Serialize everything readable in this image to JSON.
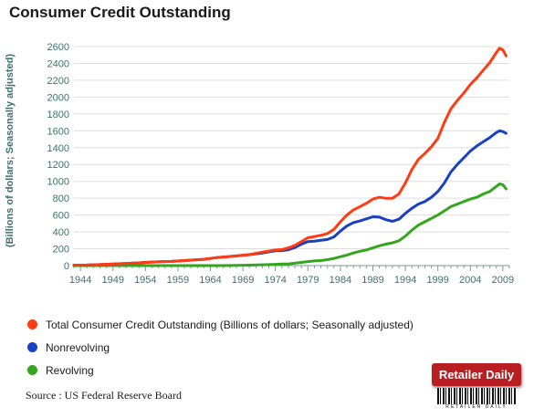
{
  "title": "Consumer Credit Outstanding",
  "source": "Source : US Federal Reserve Board",
  "logo": {
    "text": "Retailer Daily",
    "subtext": "RETAILER DAILY"
  },
  "colors": {
    "total": "#ff3b12",
    "nonrevolving": "#1a3fc4",
    "revolving": "#33a61c",
    "axis_text": "#3f6f6f"
  },
  "chart_data": {
    "type": "line",
    "ylabel": "(Billions of dollars; Seasonally adjusted)",
    "ylim": [
      0,
      2600
    ],
    "yticks": [
      0,
      200,
      400,
      600,
      800,
      1000,
      1200,
      1400,
      1600,
      1800,
      2000,
      2200,
      2400,
      2600
    ],
    "xlim": [
      1943,
      2010
    ],
    "xticks": [
      1944,
      1949,
      1954,
      1959,
      1964,
      1969,
      1974,
      1979,
      1984,
      1989,
      1994,
      1999,
      2004,
      2009
    ],
    "grid": true,
    "legend_position": "bottom",
    "x": [
      1943,
      1945,
      1947,
      1950,
      1953,
      1955,
      1958,
      1960,
      1963,
      1965,
      1968,
      1970,
      1972,
      1974,
      1975,
      1976,
      1977,
      1978,
      1979,
      1980,
      1981,
      1982,
      1983,
      1984,
      1985,
      1986,
      1987,
      1988,
      1989,
      1990,
      1991,
      1992,
      1993,
      1994,
      1995,
      1996,
      1997,
      1998,
      1999,
      2000,
      2001,
      2002,
      2003,
      2004,
      2005,
      2006,
      2007,
      2008,
      2008.5,
      2009,
      2009.5
    ],
    "series": [
      {
        "name": "Total Consumer Credit Outstanding (Billions of dollars; Seasonally adjusted)",
        "values": [
          5,
          6,
          12,
          22,
          32,
          42,
          50,
          60,
          75,
          95,
          115,
          130,
          160,
          185,
          190,
          210,
          240,
          285,
          330,
          345,
          360,
          380,
          430,
          520,
          600,
          660,
          700,
          740,
          790,
          810,
          800,
          800,
          850,
          980,
          1140,
          1260,
          1330,
          1410,
          1510,
          1700,
          1860,
          1960,
          2050,
          2150,
          2230,
          2320,
          2410,
          2530,
          2580,
          2560,
          2490
        ]
      },
      {
        "name": "Nonrevolving",
        "values": [
          5,
          6,
          12,
          22,
          32,
          42,
          50,
          60,
          75,
          95,
          115,
          130,
          150,
          175,
          178,
          188,
          215,
          255,
          285,
          290,
          300,
          310,
          340,
          410,
          470,
          510,
          530,
          555,
          580,
          575,
          545,
          525,
          550,
          620,
          680,
          730,
          760,
          810,
          880,
          980,
          1110,
          1200,
          1280,
          1360,
          1420,
          1470,
          1520,
          1580,
          1600,
          1590,
          1570
        ]
      },
      {
        "name": "Revolving",
        "values": [
          0,
          0,
          0,
          0,
          0,
          0,
          0,
          0,
          0,
          0,
          2,
          5,
          10,
          15,
          18,
          20,
          28,
          38,
          48,
          55,
          60,
          70,
          85,
          105,
          125,
          150,
          170,
          185,
          210,
          235,
          255,
          270,
          295,
          350,
          420,
          480,
          520,
          560,
          600,
          650,
          700,
          730,
          760,
          790,
          810,
          850,
          880,
          940,
          970,
          960,
          910
        ]
      }
    ]
  }
}
